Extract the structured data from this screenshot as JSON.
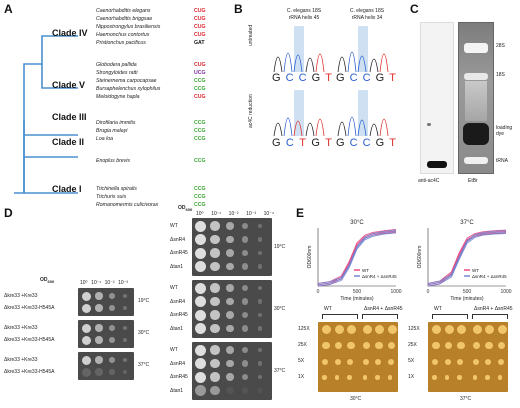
{
  "panels": {
    "A": {
      "label": "A",
      "clades": [
        {
          "name": "Clade IV",
          "species": [
            {
              "name": "Caenorhabditis elegans",
              "codon": "CUG",
              "color": "#d9262e"
            },
            {
              "name": "Caenorhabditis briggsae",
              "codon": "CUG",
              "color": "#d9262e"
            },
            {
              "name": "Nippostrongylus brasiliensis",
              "codon": "CUG",
              "color": "#d9262e"
            },
            {
              "name": "Haemonchus contortus",
              "codon": "CUG",
              "color": "#d9262e"
            },
            {
              "name": "Pristionchus pacificus",
              "codon": "GAT",
              "color": "#111111"
            }
          ]
        },
        {
          "name": "Clade V",
          "species": [
            {
              "name": "Globodera pallida",
              "codon": "CUG",
              "color": "#d9262e"
            },
            {
              "name": "Strongyloides ratti",
              "codon": "UCG",
              "color": "#7a2fa0"
            },
            {
              "name": "Steinernema carpocapsae",
              "codon": "CCG",
              "color": "#3aa535"
            },
            {
              "name": "Bursaphelenchus xylophilus",
              "codon": "CCG",
              "color": "#3aa535"
            },
            {
              "name": "Meloidogyne hapla",
              "codon": "CUG",
              "color": "#d9262e"
            }
          ]
        },
        {
          "name": "Clade III",
          "species": [
            {
              "name": "Dirofilaria immitis",
              "codon": "CCG",
              "color": "#3aa535"
            },
            {
              "name": "Brugia malayi",
              "codon": "CCG",
              "color": "#3aa535"
            },
            {
              "name": "Loa loa",
              "codon": "CCG",
              "color": "#3aa535"
            }
          ]
        },
        {
          "name": "Clade II",
          "species": [
            {
              "name": "Enoplus brevis",
              "codon": "CCG",
              "color": "#3aa535"
            }
          ]
        },
        {
          "name": "Clade I",
          "species": [
            {
              "name": "Trichinella spiralis",
              "codon": "CCG",
              "color": "#3aa535"
            },
            {
              "name": "Trichuris suis",
              "codon": "CCG",
              "color": "#3aa535"
            },
            {
              "name": "Romanomermis culicivorax",
              "codon": "CCG",
              "color": "#3aa535"
            }
          ]
        }
      ]
    },
    "B": {
      "label": "B",
      "col1_title_line1": "C. elegans 18S",
      "col1_title_line2": "rRNA helix 45",
      "col2_title_line1": "C. elegans 18S",
      "col2_title_line2": "rRNA helix 34",
      "row1_label": "untreated",
      "row2_label": "ac4C reduction",
      "seq_top_left": [
        "G",
        "C",
        "C",
        "G",
        "T"
      ],
      "seq_top_right": [
        "G",
        "C",
        "C",
        "G",
        "T"
      ],
      "seq_bot_left": [
        "G",
        "C",
        "T",
        "G",
        "T"
      ],
      "seq_bot_right": [
        "G",
        "C",
        "C",
        "G",
        "T"
      ]
    },
    "C": {
      "label": "C",
      "lane1": "anti-ac4C",
      "lane2": "EtBr",
      "bands": [
        "28S",
        "18S",
        "loading dye",
        "tRNA"
      ]
    },
    "D": {
      "label": "D",
      "od_label": "OD",
      "od_sub": "600",
      "left_dilutions": [
        "10⁰",
        "10⁻¹",
        "10⁻²",
        "10⁻³"
      ],
      "right_dilutions": [
        "10⁰",
        "10⁻¹",
        "10⁻²",
        "10⁻³",
        "10⁻⁴"
      ],
      "left_rows": [
        "Δkre33 +Kre33",
        "Δkre33 +Kre33-H545A"
      ],
      "right_rows": [
        "WT",
        "ΔsnR4",
        "ΔsnR45",
        "Δtan1"
      ],
      "temps": [
        "19°C",
        "30°C",
        "37°C"
      ]
    },
    "E": {
      "label": "E",
      "chart_data": [
        {
          "type": "line",
          "title": "30°C",
          "xlabel": "Time (minutes)",
          "ylabel": "OD600nm",
          "xlim": [
            0,
            1000
          ],
          "xticks": [
            0,
            500,
            1000
          ],
          "series": [
            {
              "name": "WT",
              "color": "#e8407a",
              "x": [
                0,
                150,
                300,
                400,
                500,
                600,
                700,
                850,
                1000
              ],
              "y": [
                0.02,
                0.05,
                0.15,
                0.4,
                0.72,
                0.85,
                0.9,
                0.93,
                0.95
              ]
            },
            {
              "name": "ΔsnR4 + ΔsnR45",
              "color": "#6a7fd0",
              "x": [
                0,
                150,
                300,
                400,
                500,
                600,
                700,
                850,
                1000
              ],
              "y": [
                0.02,
                0.05,
                0.12,
                0.34,
                0.66,
                0.82,
                0.88,
                0.92,
                0.94
              ]
            }
          ]
        },
        {
          "type": "line",
          "title": "37°C",
          "xlabel": "Time (minutes)",
          "ylabel": "OD600nm",
          "xlim": [
            0,
            1000
          ],
          "xticks": [
            0,
            500,
            1000
          ],
          "series": [
            {
              "name": "WT",
              "color": "#e8407a",
              "x": [
                0,
                150,
                300,
                400,
                500,
                600,
                700,
                850,
                1000
              ],
              "y": [
                0.02,
                0.06,
                0.22,
                0.55,
                0.8,
                0.88,
                0.91,
                0.93,
                0.94
              ]
            },
            {
              "name": "ΔsnR4 + ΔsnR45",
              "color": "#6a7fd0",
              "x": [
                0,
                150,
                300,
                400,
                500,
                600,
                700,
                850,
                1000
              ],
              "y": [
                0.02,
                0.06,
                0.18,
                0.48,
                0.76,
                0.86,
                0.9,
                0.92,
                0.93
              ]
            }
          ]
        }
      ],
      "plate_groups": [
        "WT",
        "ΔsnR4 + ΔsnR45"
      ],
      "dilution_rows": [
        "125X",
        "25X",
        "5X",
        "1X"
      ],
      "plate_temps": [
        "30°C",
        "37°C"
      ]
    }
  }
}
